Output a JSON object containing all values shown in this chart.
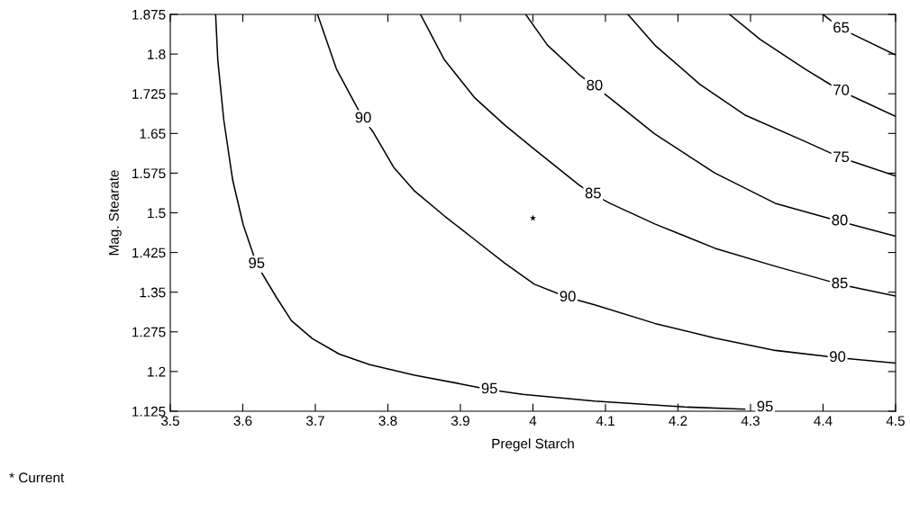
{
  "chart_data": {
    "type": "line",
    "xlabel": "Pregel Starch",
    "ylabel": "Mag. Stearate",
    "xlim": [
      3.5,
      4.5
    ],
    "xticks": [
      3.5,
      3.6,
      3.7,
      3.8,
      3.9,
      4,
      4.1,
      4.2,
      4.3,
      4.4,
      4.5
    ],
    "ylim": [
      1.125,
      1.875
    ],
    "yticks": [
      1.125,
      1.2,
      1.275,
      1.35,
      1.425,
      1.5,
      1.575,
      1.65,
      1.725,
      1.8,
      1.875
    ],
    "grid": false,
    "legend": false,
    "series": [
      {
        "color": "#000000",
        "x": [
          3.5625,
          3.5655,
          3.5737,
          3.586,
          3.6006,
          3.619,
          3.646,
          3.667,
          3.696,
          3.733,
          3.775,
          3.837,
          3.899,
          3.94,
          3.986,
          4.085,
          4.209,
          4.292
        ],
        "values": [
          1.875,
          1.789,
          1.676,
          1.562,
          1.477,
          1.403,
          1.341,
          1.296,
          1.262,
          1.233,
          1.213,
          1.193,
          1.177,
          1.166,
          1.157,
          1.144,
          1.133,
          1.129
        ]
      },
      {
        "color": "#000000",
        "x": [
          3.703,
          3.729,
          3.758,
          3.766,
          3.779,
          3.808,
          3.837,
          3.878,
          3.92,
          3.961,
          4.002,
          4.048,
          4.085,
          4.168,
          4.251,
          4.334,
          4.42,
          4.499
        ],
        "values": [
          1.875,
          1.772,
          1.698,
          1.678,
          1.654,
          1.586,
          1.541,
          1.494,
          1.449,
          1.405,
          1.365,
          1.34,
          1.326,
          1.291,
          1.263,
          1.24,
          1.226,
          1.216
        ]
      },
      {
        "color": "#000000",
        "x": [
          3.845,
          3.878,
          3.92,
          3.961,
          4.002,
          4.064,
          4.083,
          4.106,
          4.168,
          4.251,
          4.334,
          4.423,
          4.499
        ],
        "values": [
          1.875,
          1.789,
          1.717,
          1.666,
          1.62,
          1.552,
          1.535,
          1.518,
          1.479,
          1.433,
          1.399,
          1.365,
          1.343
        ]
      },
      {
        "color": "#000000",
        "x": [
          3.99,
          4.02,
          4.064,
          4.085,
          4.106,
          4.168,
          4.251,
          4.334,
          4.423,
          4.499
        ],
        "values": [
          1.875,
          1.817,
          1.761,
          1.739,
          1.717,
          1.649,
          1.575,
          1.518,
          1.484,
          1.456
        ]
      },
      {
        "color": "#000000",
        "x": [
          4.131,
          4.168,
          4.23,
          4.292,
          4.375,
          4.425,
          4.499
        ],
        "values": [
          1.875,
          1.817,
          1.743,
          1.685,
          1.635,
          1.604,
          1.57
        ]
      },
      {
        "color": "#000000",
        "x": [
          4.271,
          4.313,
          4.375,
          4.425,
          4.499
        ],
        "values": [
          1.875,
          1.828,
          1.772,
          1.73,
          1.683
        ]
      },
      {
        "color": "#000000",
        "x": [
          4.4,
          4.425,
          4.499
        ],
        "values": [
          1.875,
          1.848,
          1.799
        ]
      },
      {
        "type": "scatter",
        "color": "#000000",
        "marker": "star",
        "x": [
          4
        ],
        "values": [
          1.49
        ]
      }
    ],
    "annotations": [
      {
        "text": "95",
        "x": 3.619,
        "y": 1.403
      },
      {
        "text": "95",
        "x": 3.94,
        "y": 1.166
      },
      {
        "text": "95",
        "x": 4.32,
        "y": 1.132
      },
      {
        "text": "90",
        "x": 3.766,
        "y": 1.678
      },
      {
        "text": "90",
        "x": 4.048,
        "y": 1.34
      },
      {
        "text": "90",
        "x": 4.42,
        "y": 1.226
      },
      {
        "text": "85",
        "x": 4.083,
        "y": 1.535
      },
      {
        "text": "85",
        "x": 4.423,
        "y": 1.365
      },
      {
        "text": "80",
        "x": 4.085,
        "y": 1.739
      },
      {
        "text": "80",
        "x": 4.423,
        "y": 1.484
      },
      {
        "text": "75",
        "x": 4.425,
        "y": 1.6035
      },
      {
        "text": "70",
        "x": 4.425,
        "y": 1.73
      },
      {
        "text": "65",
        "x": 4.425,
        "y": 1.848
      },
      "* Current"
    ]
  }
}
